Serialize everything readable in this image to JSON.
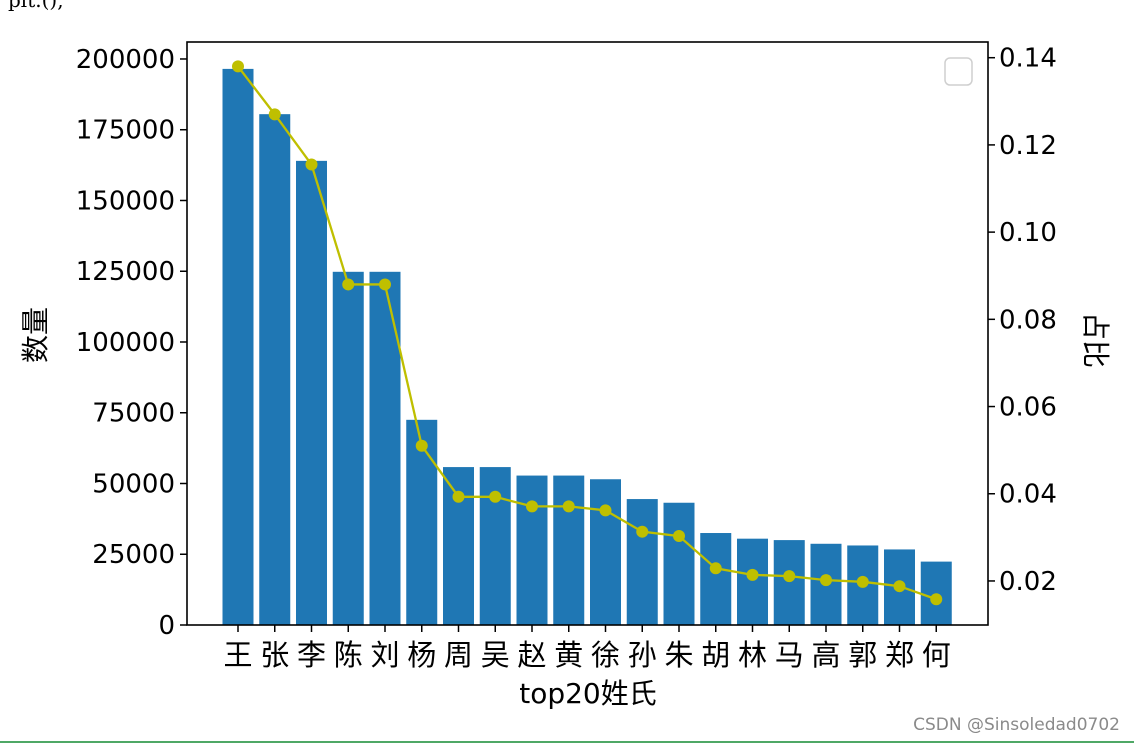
{
  "page": {
    "top_cut_text": "plt.(),  ",
    "watermark": "CSDN @Sinsoledad0702"
  },
  "colors": {
    "bar": "#1f77b4",
    "line": "#bfbf00",
    "axis": "#000000",
    "footer_rule": "#4fa866"
  },
  "chart_data": {
    "type": "bar",
    "title": "",
    "xlabel": "top20姓氏",
    "ylabel": "数量",
    "y2label": "占比",
    "categories": [
      "王",
      "张",
      "李",
      "陈",
      "刘",
      "杨",
      "周",
      "吴",
      "赵",
      "黄",
      "徐",
      "孙",
      "朱",
      "胡",
      "林",
      "马",
      "高",
      "郭",
      "郑",
      "何"
    ],
    "series": [
      {
        "type": "bar",
        "axis": "left",
        "values": [
          196500,
          180500,
          164000,
          124800,
          124800,
          72500,
          55800,
          55800,
          52800,
          52800,
          51500,
          44500,
          43200,
          32500,
          30500,
          30000,
          28700,
          28100,
          26700,
          22400
        ]
      },
      {
        "type": "line",
        "axis": "right",
        "marker": "circle",
        "values": [
          0.138,
          0.127,
          0.1155,
          0.088,
          0.088,
          0.051,
          0.0393,
          0.0393,
          0.0371,
          0.0371,
          0.0362,
          0.0313,
          0.0303,
          0.0229,
          0.0214,
          0.0211,
          0.0202,
          0.0198,
          0.0188,
          0.0158
        ]
      }
    ],
    "ylim": [
      0,
      206000
    ],
    "y2lim": [
      0.0099,
      0.1436
    ],
    "yticks": [
      0,
      25000,
      50000,
      75000,
      100000,
      125000,
      150000,
      175000,
      200000
    ],
    "y2ticks": [
      0.02,
      0.04,
      0.06,
      0.08,
      0.1,
      0.12,
      0.14
    ],
    "y2tick_labels": [
      "0.02",
      "0.04",
      "0.06",
      "0.08",
      "0.10",
      "0.12",
      "0.14"
    ],
    "legend": {
      "position": "upper right",
      "entries": []
    },
    "grid": false
  }
}
